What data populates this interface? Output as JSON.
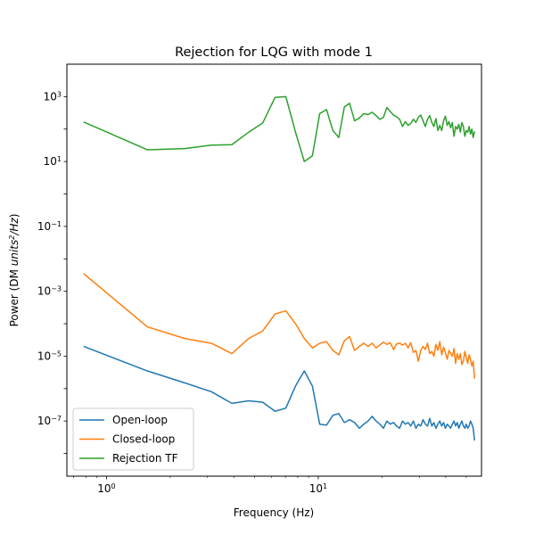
{
  "chart_data": {
    "type": "line",
    "title": "Rejection for LQG with mode 1",
    "xlabel": "Frequency (Hz)",
    "ylabel": {
      "prefix": "Power (DM ",
      "units": "units",
      "sup": "2",
      "suffix_italic": "/Hz",
      "close": ")"
    },
    "xscale": "log",
    "yscale": "log",
    "xlim": [
      0.65,
      59
    ],
    "ylim": [
      2e-09,
      10000.0
    ],
    "x_ticks": [
      {
        "value": 1,
        "base": "10",
        "exp": "0"
      },
      {
        "value": 10,
        "base": "10",
        "exp": "1"
      }
    ],
    "y_ticks": [
      {
        "value": 1e-07,
        "base": "10",
        "exp": "−7"
      },
      {
        "value": 1e-05,
        "base": "10",
        "exp": "−5"
      },
      {
        "value": 0.001,
        "base": "10",
        "exp": "−3"
      },
      {
        "value": 0.1,
        "base": "10",
        "exp": "−1"
      },
      {
        "value": 10,
        "base": "10",
        "exp": "1"
      },
      {
        "value": 1000,
        "base": "10",
        "exp": "3"
      }
    ],
    "legend_position": "lower-left",
    "grid": false,
    "series": [
      {
        "name": "Open-loop",
        "color": "#1f77b4",
        "x": [
          0.78,
          1.56,
          2.34,
          3.13,
          3.91,
          4.69,
          5.47,
          6.25,
          7.03,
          7.81,
          8.59,
          9.38,
          10.16,
          10.94,
          11.72,
          12.5,
          13.28,
          14.06,
          14.84,
          15.63,
          16.41,
          17.19,
          17.97,
          18.75,
          19.53,
          20.31,
          21.09,
          21.88,
          22.66,
          23.44,
          24.22,
          25.0,
          25.78,
          26.56,
          27.34,
          28.13,
          28.91,
          29.69,
          30.47,
          31.25,
          32.03,
          32.81,
          33.59,
          34.38,
          35.16,
          35.94,
          36.72,
          37.5,
          38.28,
          39.06,
          39.84,
          40.63,
          41.41,
          42.19,
          42.97,
          43.75,
          44.53,
          45.31,
          46.09,
          46.88,
          47.66,
          48.44,
          49.22,
          50.0,
          50.78,
          51.56,
          52.34,
          53.13,
          53.91,
          54.69
        ],
        "y": [
          2e-05,
          3.5e-06,
          1.5e-06,
          8e-07,
          3.5e-07,
          4.2e-07,
          3.8e-07,
          2e-07,
          2.5e-07,
          1.2e-06,
          3.5e-06,
          1.2e-06,
          8e-08,
          7.5e-08,
          1.5e-07,
          1.7e-07,
          9e-08,
          1.1e-07,
          9e-08,
          6e-08,
          8e-08,
          1e-07,
          1.4e-07,
          1e-07,
          8e-08,
          6e-08,
          1e-07,
          8e-08,
          9e-08,
          7e-08,
          6e-08,
          1e-07,
          8e-08,
          9e-08,
          7e-08,
          1e-07,
          6e-08,
          8e-08,
          7e-08,
          1.1e-07,
          8e-08,
          7e-08,
          1.2e-07,
          7e-08,
          9e-08,
          6e-08,
          8e-08,
          1e-07,
          7e-08,
          9e-08,
          6e-08,
          8e-08,
          7e-08,
          6e-08,
          8e-08,
          1e-07,
          7e-08,
          9e-08,
          6e-08,
          8e-08,
          1e-07,
          7e-08,
          6e-08,
          8e-08,
          6e-08,
          7e-08,
          1e-07,
          8e-08,
          6e-08,
          2.5e-08
        ]
      },
      {
        "name": "Closed-loop",
        "color": "#ff7f0e",
        "x": [
          0.78,
          1.56,
          2.34,
          3.13,
          3.91,
          4.69,
          5.47,
          6.25,
          7.03,
          7.81,
          8.59,
          9.38,
          10.16,
          10.94,
          11.72,
          12.5,
          13.28,
          14.06,
          14.84,
          15.63,
          16.41,
          17.19,
          17.97,
          18.75,
          19.53,
          20.31,
          21.09,
          21.88,
          22.66,
          23.44,
          24.22,
          25.0,
          25.78,
          26.56,
          27.34,
          28.13,
          28.91,
          29.69,
          30.47,
          31.25,
          32.03,
          32.81,
          33.59,
          34.38,
          35.16,
          35.94,
          36.72,
          37.5,
          38.28,
          39.06,
          39.84,
          40.63,
          41.41,
          42.19,
          42.97,
          43.75,
          44.53,
          45.31,
          46.09,
          46.88,
          47.66,
          48.44,
          49.22,
          50.0,
          50.78,
          51.56,
          52.34,
          53.13,
          53.91,
          54.69
        ],
        "y": [
          0.0035,
          8e-05,
          3.5e-05,
          2.5e-05,
          1.2e-05,
          3.5e-05,
          6e-05,
          0.0002,
          0.00025,
          0.0001,
          3.5e-05,
          1.8e-05,
          2.5e-05,
          2.8e-05,
          1.5e-05,
          1.1e-05,
          3e-05,
          4e-05,
          1.5e-05,
          2e-05,
          2.5e-05,
          2e-05,
          2.5e-05,
          1.8e-05,
          2.2e-05,
          2.7e-05,
          2.3e-05,
          2.6e-05,
          1.6e-05,
          2.4e-05,
          2.5e-05,
          2.2e-05,
          2.5e-05,
          1.8e-05,
          2.6e-05,
          1.3e-05,
          1.5e-05,
          7e-06,
          1.5e-05,
          2e-05,
          1.6e-05,
          2.5e-05,
          1.2e-05,
          1.4e-05,
          1e-05,
          2.3e-05,
          1.5e-05,
          2.8e-05,
          1.1e-05,
          1.9e-05,
          1.3e-05,
          8e-06,
          1.5e-05,
          1.2e-05,
          1e-05,
          1.7e-05,
          6e-06,
          1.2e-05,
          8e-06,
          1.2e-05,
          5.5e-06,
          7e-06,
          1.4e-05,
          9e-06,
          6e-06,
          1.1e-05,
          8e-06,
          5e-06,
          7e-06,
          2e-06
        ]
      },
      {
        "name": "Rejection TF",
        "color": "#2ca02c",
        "x": [
          0.78,
          1.56,
          2.34,
          3.13,
          3.91,
          4.69,
          5.47,
          6.25,
          7.03,
          7.81,
          8.59,
          9.38,
          10.16,
          10.94,
          11.72,
          12.5,
          13.28,
          14.06,
          14.84,
          15.63,
          16.41,
          17.19,
          17.97,
          18.75,
          19.53,
          20.31,
          21.09,
          21.88,
          22.66,
          23.44,
          24.22,
          25.0,
          25.78,
          26.56,
          27.34,
          28.13,
          28.91,
          29.69,
          30.47,
          31.25,
          32.03,
          32.81,
          33.59,
          34.38,
          35.16,
          35.94,
          36.72,
          37.5,
          38.28,
          39.06,
          39.84,
          40.63,
          41.41,
          42.19,
          42.97,
          43.75,
          44.53,
          45.31,
          46.09,
          46.88,
          47.66,
          48.44,
          49.22,
          50.0,
          50.78,
          51.56,
          52.34,
          53.13,
          53.91,
          54.69
        ],
        "y": [
          165,
          23,
          25,
          32,
          33,
          80,
          155,
          950,
          1000,
          80,
          10,
          15,
          300,
          400,
          90,
          55,
          480,
          620,
          180,
          220,
          300,
          280,
          330,
          260,
          200,
          230,
          460,
          350,
          270,
          240,
          200,
          120,
          170,
          130,
          150,
          200,
          160,
          230,
          270,
          180,
          120,
          200,
          260,
          160,
          120,
          210,
          90,
          130,
          90,
          180,
          250,
          130,
          170,
          110,
          160,
          60,
          120,
          100,
          140,
          80,
          160,
          120,
          60,
          90,
          80,
          120,
          70,
          100,
          55,
          85
        ]
      }
    ]
  }
}
